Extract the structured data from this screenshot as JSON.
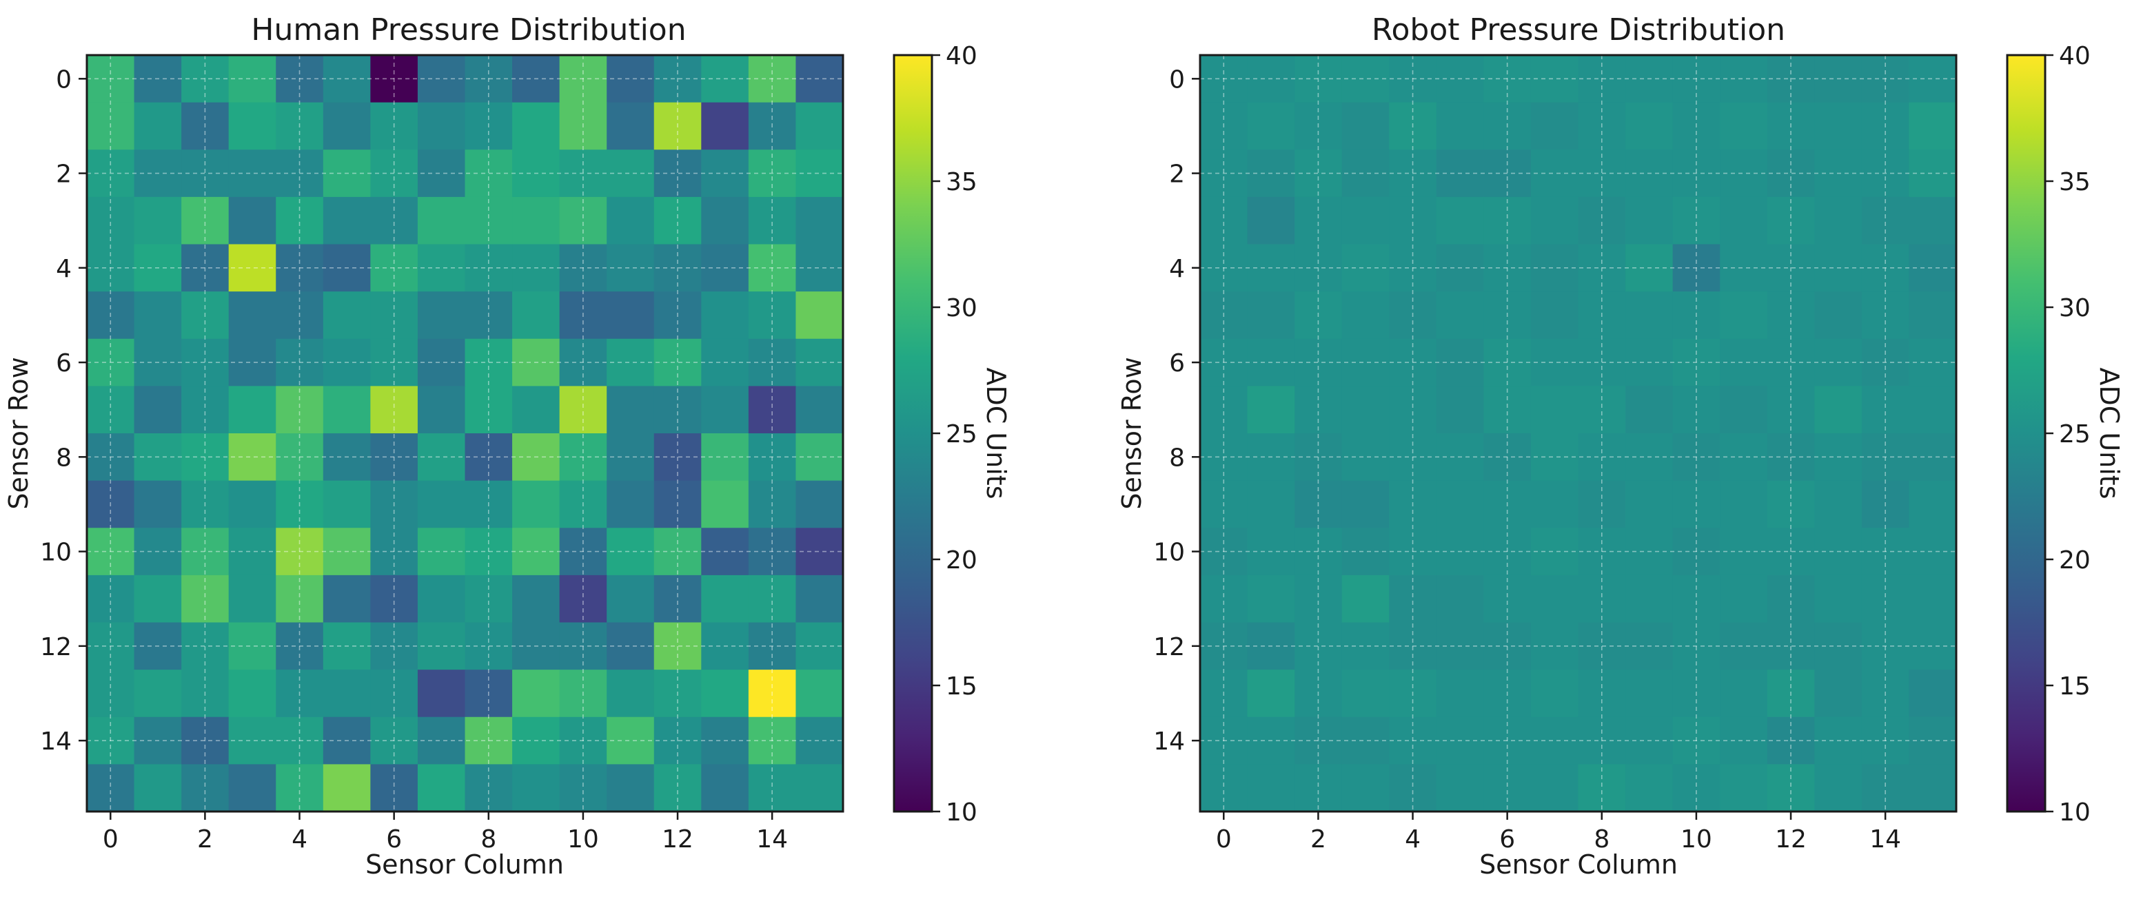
{
  "chart_data": [
    {
      "type": "heatmap",
      "title": "Human Pressure Distribution",
      "xlabel": "Sensor Column",
      "ylabel": "Sensor Row",
      "x_ticks": [
        0,
        2,
        4,
        6,
        8,
        10,
        12,
        14
      ],
      "y_ticks": [
        0,
        2,
        4,
        6,
        8,
        10,
        12,
        14
      ],
      "grid": true,
      "colormap": "viridis",
      "vmin": 10,
      "vmax": 40,
      "colorbar": {
        "label": "ADC Units",
        "ticks": [
          10,
          15,
          20,
          25,
          30,
          35,
          40
        ]
      },
      "values": [
        [
          30,
          22,
          27,
          29,
          21,
          24,
          10,
          21,
          23,
          20,
          32,
          20,
          24,
          27,
          32,
          19
        ],
        [
          30,
          26,
          21,
          28,
          27,
          23,
          26,
          24,
          25,
          28,
          32,
          21,
          36,
          16,
          23,
          27
        ],
        [
          27,
          24,
          24,
          24,
          24,
          29,
          27,
          23,
          29,
          28,
          27,
          27,
          22,
          24,
          29,
          28
        ],
        [
          26,
          27,
          31,
          22,
          28,
          24,
          24,
          29,
          29,
          29,
          30,
          25,
          28,
          23,
          26,
          24
        ],
        [
          26,
          28,
          21,
          37,
          21,
          20,
          29,
          27,
          26,
          26,
          23,
          24,
          23,
          22,
          31,
          24
        ],
        [
          22,
          24,
          27,
          22,
          22,
          26,
          26,
          23,
          23,
          27,
          20,
          20,
          22,
          25,
          26,
          33
        ],
        [
          29,
          24,
          25,
          22,
          24,
          25,
          26,
          22,
          28,
          32,
          24,
          27,
          29,
          25,
          24,
          26
        ],
        [
          27,
          22,
          25,
          28,
          32,
          29,
          36,
          23,
          28,
          26,
          36,
          23,
          23,
          24,
          16,
          23
        ],
        [
          23,
          27,
          28,
          34,
          30,
          23,
          21,
          27,
          19,
          33,
          29,
          23,
          18,
          30,
          25,
          30
        ],
        [
          19,
          22,
          26,
          25,
          28,
          27,
          24,
          25,
          25,
          29,
          27,
          22,
          19,
          31,
          24,
          22
        ],
        [
          31,
          24,
          30,
          26,
          35,
          32,
          24,
          29,
          28,
          31,
          21,
          28,
          30,
          19,
          21,
          16
        ],
        [
          25,
          27,
          32,
          26,
          32,
          21,
          19,
          25,
          26,
          23,
          16,
          24,
          21,
          27,
          27,
          22
        ],
        [
          26,
          22,
          26,
          29,
          22,
          27,
          24,
          26,
          25,
          23,
          23,
          21,
          33,
          25,
          23,
          26
        ],
        [
          26,
          27,
          26,
          28,
          25,
          25,
          25,
          17,
          19,
          31,
          30,
          26,
          27,
          28,
          40,
          29
        ],
        [
          27,
          23,
          20,
          27,
          27,
          21,
          26,
          23,
          32,
          28,
          26,
          31,
          25,
          23,
          31,
          24
        ],
        [
          22,
          26,
          23,
          21,
          29,
          34,
          20,
          28,
          24,
          25,
          24,
          23,
          27,
          22,
          26,
          26
        ]
      ]
    },
    {
      "type": "heatmap",
      "title": "Robot Pressure Distribution",
      "xlabel": "Sensor Column",
      "ylabel": "Sensor Row",
      "x_ticks": [
        0,
        2,
        4,
        6,
        8,
        10,
        12,
        14
      ],
      "y_ticks": [
        0,
        2,
        4,
        6,
        8,
        10,
        12,
        14
      ],
      "grid": true,
      "colormap": "viridis",
      "vmin": 10,
      "vmax": 40,
      "colorbar": {
        "label": "ADC Units",
        "ticks": [
          10,
          15,
          20,
          25,
          30,
          35,
          40
        ]
      },
      "values": [
        [
          25,
          25,
          25.5,
          25.5,
          25,
          25,
          25.5,
          25.5,
          25,
          25,
          25,
          25,
          24.5,
          24.5,
          24.5,
          25
        ],
        [
          25,
          25.5,
          25,
          24.5,
          26,
          25,
          25,
          24.5,
          25,
          25.5,
          25,
          25.5,
          25,
          25,
          25,
          26.5
        ],
        [
          25,
          24.5,
          25.5,
          24.5,
          25,
          24,
          24,
          25,
          25,
          25,
          25,
          25,
          24.5,
          25,
          25,
          26
        ],
        [
          25,
          23.5,
          25,
          25,
          25,
          25.5,
          25.5,
          25,
          24.5,
          25,
          25.5,
          25,
          25.5,
          25,
          24.5,
          24.5
        ],
        [
          25,
          25,
          25,
          25.5,
          25,
          24.5,
          25,
          24.5,
          25,
          26,
          22.5,
          25,
          25,
          25,
          25,
          24
        ],
        [
          24.5,
          24.5,
          25.5,
          25,
          24.5,
          25,
          25,
          24.5,
          25,
          25,
          25,
          25.5,
          25,
          24.5,
          25,
          24.5
        ],
        [
          25,
          25,
          25,
          25,
          25,
          24.5,
          25.5,
          25,
          25,
          25,
          25.5,
          25,
          25,
          25,
          24.5,
          25
        ],
        [
          25,
          26.5,
          25,
          25,
          25,
          24.5,
          25.5,
          25.5,
          25.5,
          24.5,
          25,
          24.5,
          25,
          26,
          25,
          25
        ],
        [
          25,
          25,
          24.5,
          25,
          25,
          25,
          24.5,
          25.5,
          25,
          25,
          24.5,
          25,
          24.5,
          25,
          24.5,
          24.5
        ],
        [
          25,
          25,
          24,
          24,
          25,
          25,
          25,
          25,
          24.5,
          25,
          25,
          25,
          25.5,
          25,
          24,
          25
        ],
        [
          24.5,
          25,
          25,
          24.5,
          25,
          25,
          25,
          25.5,
          25,
          25,
          24.5,
          25,
          25,
          25,
          25,
          25
        ],
        [
          25,
          25.5,
          25,
          26.5,
          24.5,
          24.5,
          25,
          25,
          25,
          25,
          25,
          25,
          24.5,
          25,
          25,
          25
        ],
        [
          24.5,
          24,
          25,
          25,
          24.5,
          24.5,
          24.5,
          25,
          24.5,
          24.5,
          25,
          24.5,
          24.5,
          24.5,
          25,
          25
        ],
        [
          25,
          26.5,
          25,
          25.5,
          25.5,
          25,
          25,
          25.5,
          25,
          25,
          25,
          25,
          26,
          24.5,
          25,
          24
        ],
        [
          25,
          25,
          24.5,
          24.5,
          25,
          25,
          25,
          25,
          25,
          25,
          25.5,
          25,
          24,
          25,
          25,
          24.5
        ],
        [
          25,
          25,
          25,
          25,
          24.5,
          25,
          25,
          25,
          26,
          25.5,
          25,
          25.5,
          26,
          25,
          24.5,
          24.5
        ]
      ]
    }
  ]
}
